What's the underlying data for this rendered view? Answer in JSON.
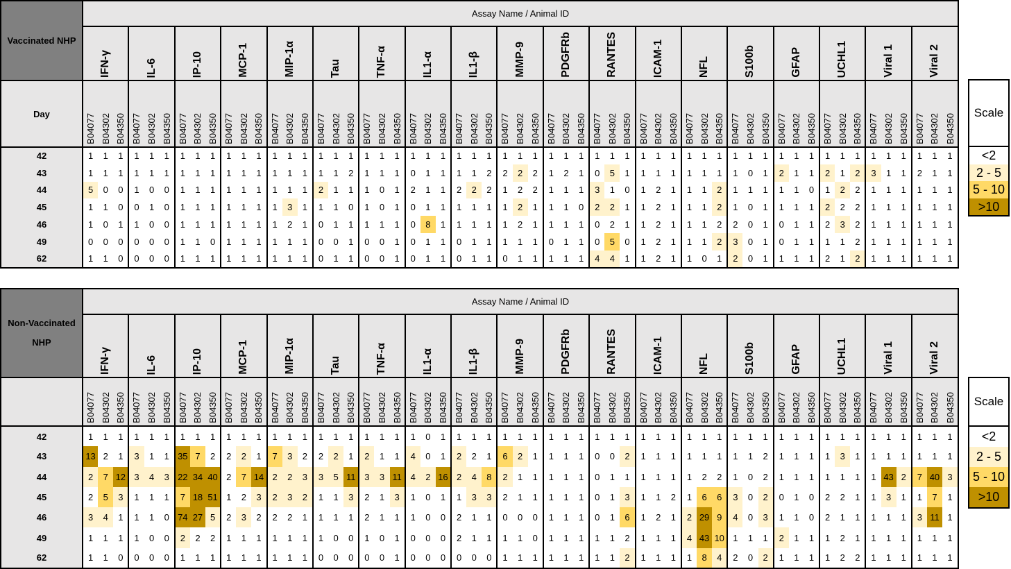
{
  "colors": {
    "header_bg": "#e7e6e6",
    "corner_bg": "#808080",
    "levels": [
      "#ffffff",
      "#fff2cc",
      "#ffd966",
      "#bf9000"
    ]
  },
  "assays": [
    "IFN-γ",
    "IL-6",
    "IP-10",
    "MCP-1",
    "MIP-1α",
    "Tau",
    "TNF-α",
    "IL1-α",
    "IL1-β",
    "MMP-9",
    "PDGFRb",
    "RANTES",
    "ICAM-1",
    "NFL",
    "S100b",
    "GFAP",
    "UCHL1",
    "Viral 1",
    "Viral 2"
  ],
  "animals": [
    "B04077",
    "B04302",
    "B04350"
  ],
  "scale": {
    "header": "Scale",
    "items": [
      "<2",
      "2 - 5",
      "5 - 10",
      ">10"
    ]
  },
  "chart_data": [
    {
      "type": "heatmap",
      "group_label": "Vaccinated NHP",
      "title": "Assay Name / Animal ID",
      "row_header": "Day",
      "days": [
        "42",
        "43",
        "44",
        "45",
        "46",
        "49",
        "62"
      ],
      "values": [
        [
          1,
          1,
          1,
          1,
          1,
          1,
          1,
          1,
          1,
          1,
          1,
          1,
          1,
          1,
          1,
          1,
          1,
          1,
          1,
          1,
          1,
          1,
          1,
          1,
          1,
          1,
          1,
          1,
          1,
          1,
          1,
          1,
          1,
          1,
          1,
          1,
          1,
          1,
          1,
          1,
          1,
          1,
          1,
          1,
          1,
          1,
          1,
          1,
          1,
          1,
          1,
          1,
          1,
          1,
          1,
          1,
          1
        ],
        [
          1,
          1,
          1,
          1,
          1,
          1,
          1,
          1,
          1,
          1,
          1,
          1,
          1,
          1,
          1,
          1,
          1,
          2,
          1,
          1,
          1,
          0,
          1,
          1,
          1,
          1,
          2,
          2,
          2,
          2,
          1,
          2,
          1,
          0,
          5,
          1,
          1,
          1,
          1,
          1,
          1,
          1,
          1,
          0,
          1,
          2,
          1,
          1,
          2,
          1,
          2,
          3,
          1,
          1,
          2,
          1,
          1
        ],
        [
          5,
          0,
          0,
          1,
          0,
          0,
          1,
          1,
          1,
          1,
          1,
          1,
          1,
          1,
          1,
          2,
          1,
          1,
          1,
          0,
          1,
          2,
          1,
          1,
          2,
          2,
          2,
          1,
          2,
          2,
          1,
          1,
          1,
          3,
          1,
          0,
          1,
          2,
          1,
          1,
          1,
          2,
          1,
          1,
          1,
          1,
          1,
          0,
          1,
          2,
          2,
          1,
          1,
          1,
          1,
          1,
          1
        ],
        [
          1,
          1,
          0,
          0,
          1,
          0,
          1,
          1,
          1,
          1,
          1,
          1,
          1,
          3,
          1,
          1,
          1,
          0,
          1,
          0,
          1,
          0,
          1,
          1,
          1,
          1,
          1,
          1,
          2,
          1,
          1,
          1,
          0,
          2,
          2,
          1,
          1,
          2,
          1,
          1,
          1,
          2,
          1,
          0,
          1,
          1,
          1,
          1,
          2,
          2,
          2,
          1,
          1,
          1,
          1,
          1,
          1
        ],
        [
          1,
          0,
          1,
          1,
          0,
          0,
          1,
          1,
          1,
          1,
          1,
          1,
          1,
          2,
          1,
          0,
          1,
          1,
          1,
          1,
          1,
          0,
          8,
          1,
          1,
          1,
          1,
          1,
          2,
          1,
          1,
          1,
          1,
          0,
          2,
          1,
          1,
          2,
          1,
          1,
          1,
          2,
          2,
          0,
          1,
          0,
          1,
          1,
          2,
          3,
          2,
          1,
          1,
          1,
          1,
          1,
          1
        ],
        [
          0,
          0,
          0,
          0,
          0,
          0,
          1,
          1,
          0,
          1,
          1,
          1,
          1,
          1,
          1,
          0,
          0,
          1,
          0,
          0,
          1,
          0,
          1,
          1,
          0,
          1,
          1,
          1,
          1,
          1,
          0,
          1,
          1,
          0,
          5,
          0,
          1,
          2,
          1,
          1,
          1,
          2,
          3,
          0,
          1,
          0,
          1,
          1,
          1,
          1,
          2,
          1,
          1,
          1,
          1,
          1,
          1
        ],
        [
          1,
          1,
          0,
          0,
          0,
          0,
          1,
          1,
          1,
          1,
          1,
          1,
          1,
          1,
          1,
          0,
          1,
          1,
          0,
          0,
          1,
          0,
          1,
          1,
          0,
          1,
          1,
          0,
          1,
          1,
          1,
          1,
          1,
          4,
          4,
          1,
          1,
          2,
          1,
          1,
          0,
          1,
          2,
          0,
          1,
          1,
          1,
          1,
          2,
          1,
          2,
          1,
          1,
          1,
          1,
          1,
          1
        ]
      ],
      "levels": [
        "000000000000000000000000000000000000000000000000000000000",
        "000000000000000000000000000010000010000000000100101100000",
        "100000000000000100000000010000000100000001000000010000000",
        "000000000000010000000000000010000110000001000000100000000",
        "000000000000000000000020000000000000000000000000010000000",
        "000000000000000000000000000000000020000001100000000000000",
        "000000000000000000000000000000000110000000100000001000000"
      ]
    },
    {
      "type": "heatmap",
      "group_label": "Non-Vaccinated NHP",
      "title": "Assay Name / Animal ID",
      "row_header": "",
      "days": [
        "42",
        "43",
        "44",
        "45",
        "46",
        "49",
        "62"
      ],
      "values": [
        [
          1,
          1,
          1,
          1,
          1,
          1,
          1,
          1,
          1,
          1,
          1,
          1,
          1,
          1,
          1,
          1,
          1,
          1,
          1,
          1,
          1,
          1,
          0,
          1,
          1,
          1,
          1,
          1,
          1,
          1,
          1,
          1,
          1,
          1,
          1,
          1,
          1,
          1,
          1,
          1,
          1,
          1,
          1,
          1,
          1,
          1,
          1,
          1,
          1,
          1,
          1,
          1,
          1,
          1,
          1,
          1,
          1
        ],
        [
          13,
          2,
          1,
          3,
          1,
          1,
          35,
          7,
          2,
          2,
          2,
          1,
          7,
          3,
          2,
          2,
          2,
          1,
          2,
          1,
          1,
          4,
          0,
          1,
          2,
          2,
          1,
          6,
          2,
          1,
          1,
          1,
          1,
          0,
          0,
          2,
          1,
          1,
          1,
          1,
          1,
          1,
          1,
          1,
          2,
          1,
          1,
          1,
          1,
          3,
          1,
          1,
          1,
          1,
          1,
          1,
          1
        ],
        [
          2,
          7,
          12,
          3,
          4,
          3,
          22,
          34,
          40,
          2,
          7,
          14,
          2,
          2,
          3,
          3,
          5,
          11,
          3,
          3,
          11,
          4,
          2,
          16,
          2,
          4,
          8,
          2,
          1,
          1,
          1,
          1,
          1,
          0,
          1,
          1,
          1,
          1,
          1,
          1,
          2,
          2,
          1,
          0,
          2,
          1,
          1,
          1,
          1,
          1,
          1,
          1,
          43,
          2,
          7,
          40,
          3
        ],
        [
          2,
          5,
          3,
          1,
          1,
          1,
          7,
          18,
          51,
          1,
          2,
          3,
          2,
          3,
          2,
          1,
          1,
          3,
          2,
          1,
          3,
          1,
          0,
          1,
          1,
          3,
          3,
          2,
          1,
          1,
          1,
          1,
          1,
          0,
          1,
          3,
          1,
          1,
          2,
          1,
          6,
          6,
          3,
          0,
          2,
          0,
          1,
          0,
          2,
          2,
          1,
          1,
          3,
          1,
          1,
          7,
          1
        ],
        [
          3,
          4,
          1,
          1,
          1,
          0,
          74,
          27,
          5,
          2,
          3,
          2,
          2,
          2,
          1,
          1,
          1,
          1,
          2,
          1,
          1,
          1,
          0,
          0,
          2,
          1,
          1,
          0,
          0,
          0,
          1,
          1,
          1,
          0,
          1,
          6,
          1,
          2,
          1,
          2,
          29,
          9,
          4,
          0,
          3,
          1,
          1,
          0,
          2,
          1,
          1,
          1,
          1,
          1,
          3,
          11,
          1
        ],
        [
          1,
          1,
          1,
          1,
          0,
          0,
          2,
          2,
          2,
          1,
          1,
          1,
          1,
          1,
          1,
          1,
          0,
          0,
          1,
          0,
          1,
          0,
          0,
          0,
          2,
          1,
          1,
          1,
          1,
          0,
          1,
          1,
          1,
          1,
          1,
          2,
          1,
          1,
          1,
          4,
          43,
          10,
          1,
          1,
          1,
          2,
          1,
          1,
          1,
          2,
          1,
          1,
          1,
          1,
          1,
          1,
          1
        ],
        [
          1,
          1,
          0,
          0,
          0,
          0,
          1,
          1,
          1,
          1,
          1,
          1,
          1,
          1,
          1,
          0,
          0,
          0,
          0,
          0,
          1,
          0,
          0,
          0,
          0,
          0,
          0,
          1,
          1,
          1,
          1,
          1,
          1,
          1,
          1,
          2,
          1,
          1,
          1,
          1,
          8,
          4,
          2,
          0,
          2,
          1,
          1,
          1,
          1,
          2,
          2,
          1,
          1,
          1,
          1,
          1,
          1
        ]
      ],
      "levels": [
        "000000000000000000000000000000000000000000000000000000000",
        "300100320010210010100100100210000001000000000000010000000",
        "123111333023111113113113112100000000000000000000000031231",
        "021000233001111001001000011000000001000022101000000010020",
        "110000331010000000000000000000000002000132101000000000130",
        "000000100000000000000000000000000000000132000100000000000",
        "000000000000000000000000000000000001000021001000000000000"
      ]
    }
  ]
}
